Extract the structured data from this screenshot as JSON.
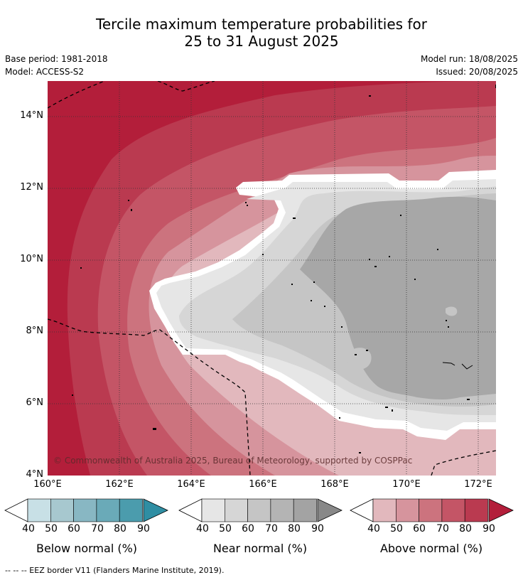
{
  "title_line1": "Tercile maximum temperature probabilities for",
  "title_line2": "25 to 31 August 2025",
  "base_period": "Base period: 1981-2018",
  "model": "Model: ACCESS-S2",
  "model_run": "Model run: 18/08/2025",
  "issued": "Issued: 20/08/2025",
  "lat_labels": [
    "14°N",
    "12°N",
    "10°N",
    "8°N",
    "6°N",
    "4°N"
  ],
  "lon_labels": [
    "160°E",
    "162°E",
    "164°E",
    "166°E",
    "168°E",
    "170°E",
    "172°E"
  ],
  "copyright": "© Commonwealth of Australia 2025, Bureau of Meteorology, supported by COSPPac",
  "colorbars": [
    {
      "title": "Below normal (%)",
      "ticks": [
        "40",
        "50",
        "60",
        "70",
        "80",
        "90"
      ],
      "colors": [
        "#c8e0e6",
        "#a7c8cf",
        "#88b7c3",
        "#6aaab8",
        "#4b9cad",
        "#2f8ea3"
      ]
    },
    {
      "title": "Near normal (%)",
      "ticks": [
        "40",
        "50",
        "60",
        "70",
        "80",
        "90"
      ],
      "colors": [
        "#e6e6e6",
        "#d6d6d6",
        "#c5c5c5",
        "#b4b4b4",
        "#a3a3a3",
        "#888888"
      ]
    },
    {
      "title": "Above normal (%)",
      "ticks": [
        "40",
        "50",
        "60",
        "70",
        "80",
        "90"
      ],
      "colors": [
        "#e2b8bd",
        "#d6949d",
        "#cc737e",
        "#c45566",
        "#ba3a50",
        "#b31e3a"
      ]
    }
  ],
  "footnote": "--  --  -- EEZ border V11 (Flanders Marine Institute, 2019).",
  "colors": {
    "above_90": "#b31e3a",
    "above_80": "#ba3a50",
    "above_70": "#c45566",
    "above_60": "#cc737e",
    "above_50": "#d6949d",
    "above_40": "#e2b8bd",
    "near_40": "#e6e6e6",
    "near_50": "#d6d6d6",
    "near_60": "#c5c5c5",
    "near_70": "#a7a7a7"
  }
}
